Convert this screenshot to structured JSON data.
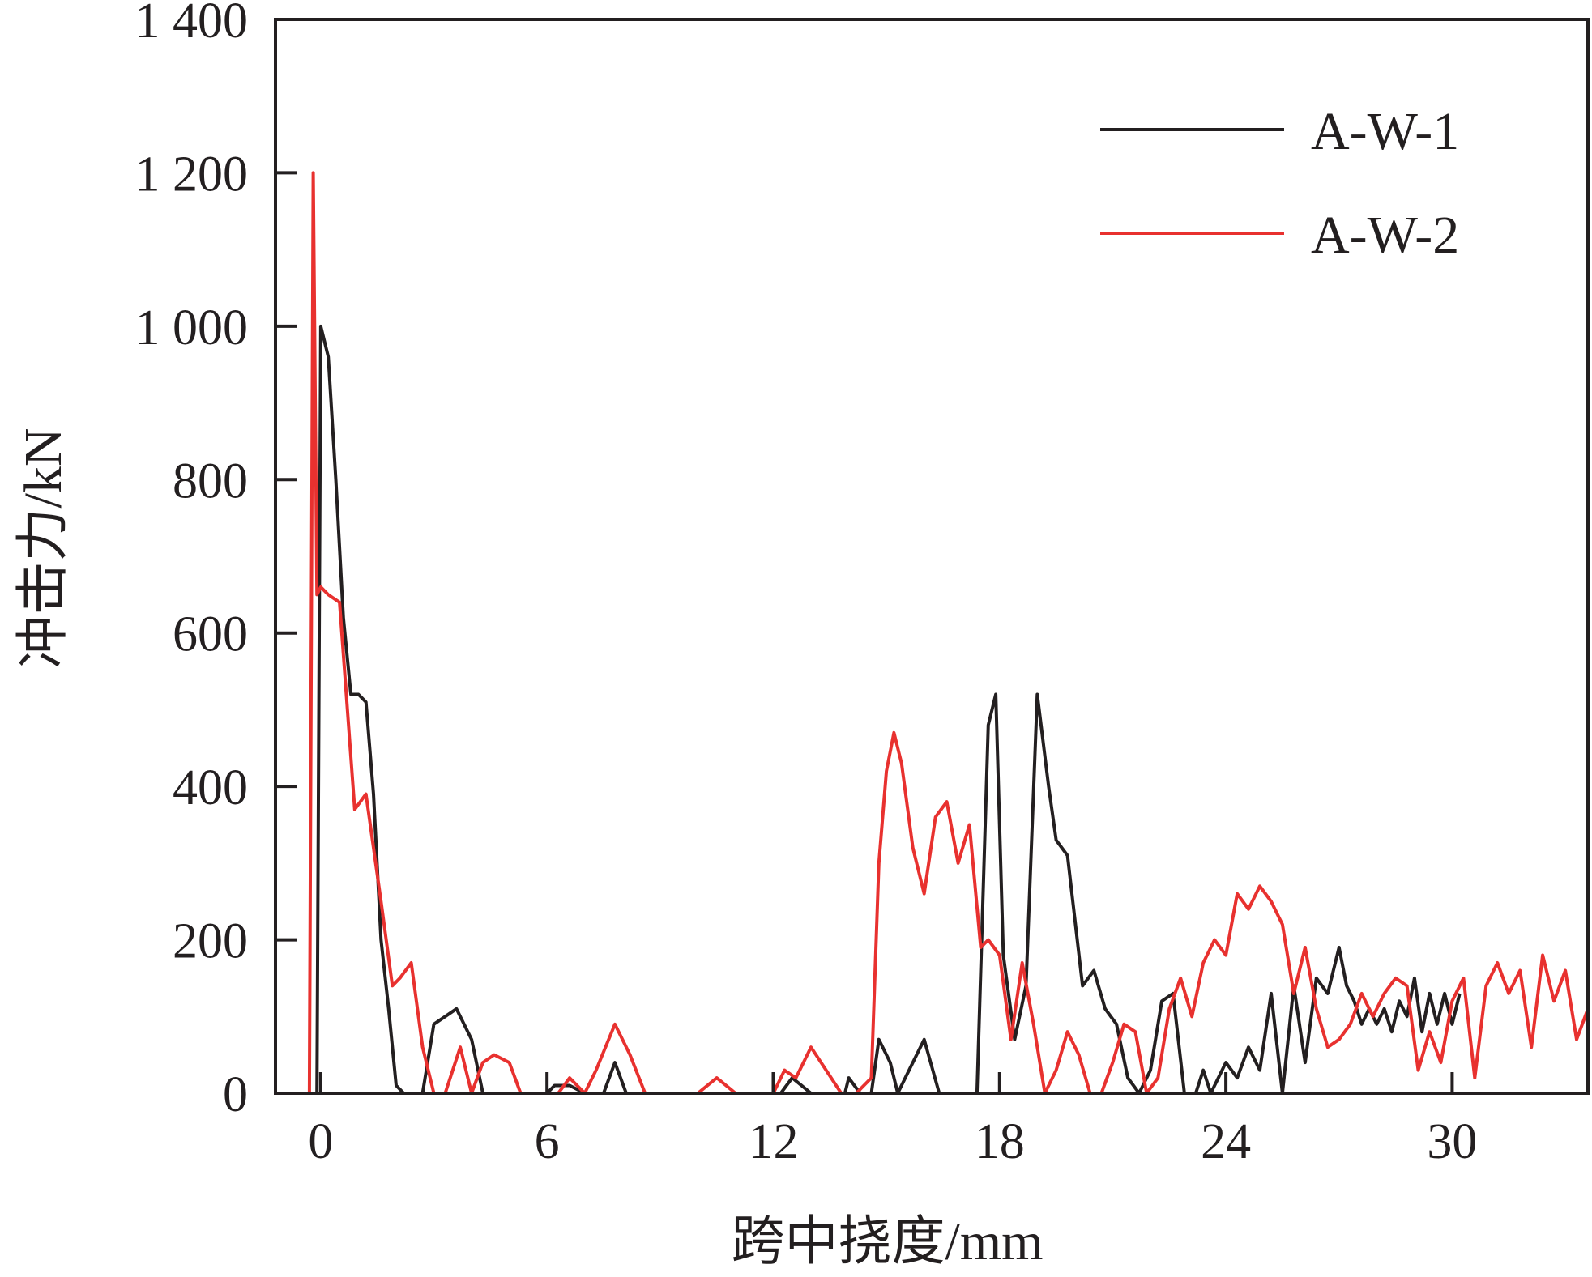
{
  "chart_data": {
    "type": "line",
    "xlabel": "跨中挠度/mm",
    "ylabel": "冲击力/kN",
    "xlim": [
      -1.2,
      33.6
    ],
    "ylim": [
      0,
      1400
    ],
    "xticks": [
      0,
      6,
      12,
      18,
      24,
      30
    ],
    "xtick_labels": [
      "0",
      "6",
      "12",
      "18",
      "24",
      "30"
    ],
    "yticks": [
      0,
      200,
      400,
      600,
      800,
      1000,
      1200,
      1400
    ],
    "ytick_labels": [
      "0",
      "200",
      "400",
      "600",
      "800",
      "1 000",
      "1 200",
      "1 400"
    ],
    "grid": false,
    "legend_position": "top-right",
    "colors": {
      "A-W-1": "#231f20",
      "A-W-2": "#e8312f",
      "axis": "#231f20"
    },
    "series": [
      {
        "name": "A-W-1",
        "x": [
          -0.1,
          0.0,
          0.2,
          0.4,
          0.6,
          0.8,
          1.0,
          1.2,
          1.4,
          1.6,
          1.8,
          2.0,
          2.2,
          2.4,
          2.7,
          3.0,
          3.3,
          3.6,
          4.0,
          4.3,
          4.5,
          4.7,
          5.0,
          6.0,
          6.2,
          6.6,
          7.0,
          7.5,
          7.8,
          8.1,
          8.4,
          9.0,
          10.0,
          11.0,
          11.8,
          12.2,
          12.5,
          13.0,
          13.5,
          13.9,
          14.0,
          14.3,
          14.6,
          14.8,
          15.1,
          15.3,
          15.7,
          16.0,
          16.4,
          16.8,
          17.1,
          17.4,
          17.7,
          17.9,
          18.1,
          18.4,
          18.7,
          19.0,
          19.3,
          19.5,
          19.8,
          20.2,
          20.5,
          20.8,
          21.1,
          21.4,
          21.7,
          22.0,
          22.3,
          22.6,
          22.9,
          23.2,
          23.4,
          23.6,
          24.0,
          24.3,
          24.6,
          24.9,
          25.2,
          25.5,
          25.8,
          26.1,
          26.4,
          26.7,
          27.0,
          27.2,
          27.4,
          27.6,
          27.8,
          28.0,
          28.2,
          28.4,
          28.6,
          28.8,
          29.0,
          29.2,
          29.4,
          29.6,
          29.8,
          30.0,
          30.2
        ],
        "y": [
          0,
          1000,
          960,
          800,
          620,
          520,
          520,
          510,
          390,
          200,
          110,
          10,
          0,
          0,
          0,
          90,
          100,
          110,
          70,
          0,
          0,
          0,
          0,
          0,
          10,
          10,
          0,
          0,
          40,
          0,
          0,
          0,
          0,
          0,
          0,
          0,
          20,
          0,
          0,
          0,
          20,
          0,
          0,
          70,
          40,
          0,
          40,
          70,
          0,
          0,
          0,
          0,
          480,
          520,
          180,
          70,
          140,
          520,
          400,
          330,
          310,
          140,
          160,
          110,
          90,
          20,
          0,
          30,
          120,
          130,
          0,
          0,
          30,
          0,
          40,
          20,
          60,
          30,
          130,
          0,
          140,
          40,
          150,
          130,
          190,
          140,
          120,
          90,
          110,
          90,
          110,
          80,
          120,
          100,
          150,
          80,
          130,
          90,
          130,
          90,
          130
        ]
      },
      {
        "name": "A-W-2",
        "x": [
          -0.3,
          -0.2,
          -0.1,
          0.0,
          0.2,
          0.5,
          0.9,
          1.2,
          1.6,
          1.9,
          2.1,
          2.4,
          2.7,
          3.0,
          3.3,
          3.7,
          4.0,
          4.3,
          4.6,
          5.0,
          5.3,
          5.6,
          6.0,
          6.3,
          6.6,
          7.0,
          7.3,
          7.8,
          8.2,
          8.6,
          9.0,
          9.4,
          10.0,
          10.5,
          11.0,
          11.5,
          12.0,
          12.3,
          12.6,
          13.0,
          13.4,
          13.8,
          14.2,
          14.6,
          14.8,
          15.0,
          15.2,
          15.4,
          15.7,
          16.0,
          16.3,
          16.6,
          16.9,
          17.2,
          17.5,
          17.7,
          18.0,
          18.3,
          18.6,
          18.9,
          19.2,
          19.5,
          19.8,
          20.1,
          20.4,
          20.7,
          21.0,
          21.3,
          21.6,
          21.9,
          22.2,
          22.5,
          22.8,
          23.1,
          23.4,
          23.7,
          24.0,
          24.3,
          24.6,
          24.9,
          25.2,
          25.5,
          25.8,
          26.1,
          26.4,
          26.7,
          27.0,
          27.3,
          27.6,
          27.9,
          28.2,
          28.5,
          28.8,
          29.1,
          29.4,
          29.7,
          30.0,
          30.3,
          30.6,
          30.9,
          31.2,
          31.5,
          31.8,
          32.1,
          32.4,
          32.7,
          33.0,
          33.3,
          33.6
        ],
        "y": [
          0,
          1200,
          650,
          660,
          650,
          640,
          370,
          390,
          250,
          140,
          150,
          170,
          60,
          0,
          0,
          60,
          0,
          40,
          50,
          40,
          0,
          0,
          0,
          0,
          20,
          0,
          30,
          90,
          50,
          0,
          0,
          0,
          0,
          20,
          0,
          0,
          0,
          30,
          20,
          60,
          30,
          0,
          0,
          20,
          300,
          420,
          470,
          430,
          320,
          260,
          360,
          380,
          300,
          350,
          190,
          200,
          180,
          70,
          170,
          90,
          0,
          30,
          80,
          50,
          0,
          0,
          40,
          90,
          80,
          0,
          20,
          110,
          150,
          100,
          170,
          200,
          180,
          260,
          240,
          270,
          250,
          220,
          130,
          190,
          110,
          60,
          70,
          90,
          130,
          100,
          130,
          150,
          140,
          30,
          80,
          40,
          120,
          150,
          20,
          140,
          170,
          130,
          160,
          60,
          180,
          120,
          160,
          70,
          110
        ]
      }
    ]
  }
}
